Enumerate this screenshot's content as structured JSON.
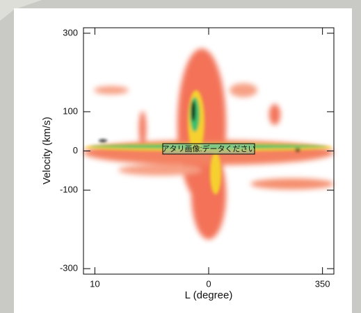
{
  "chart_data": {
    "type": "heatmap-image",
    "xlabel": "L (degree)",
    "ylabel": "Velocity (km/s)",
    "annotation": "アタリ画像:データください",
    "xlim": [
      11,
      -11
    ],
    "xticks": [
      10,
      0,
      {
        "value": -10,
        "label": "350"
      }
    ],
    "ylim": [
      -314,
      314
    ],
    "yticks": [
      300,
      100,
      0,
      -100,
      -300
    ]
  }
}
